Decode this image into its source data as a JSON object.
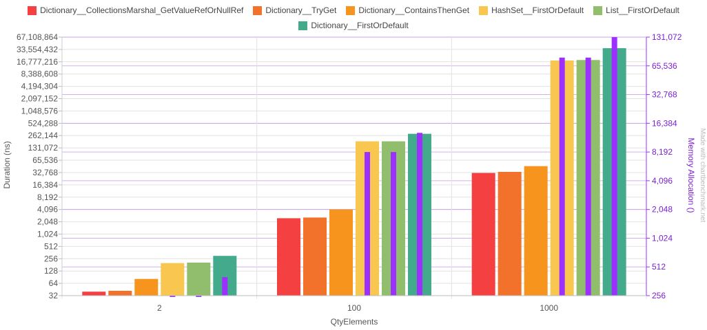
{
  "chart_data": {
    "type": "bar",
    "categories": [
      "2",
      "100",
      "1000"
    ],
    "xlabel": "QtyElements",
    "ylabel": "Duration (ns)",
    "ylabel_right": "Memory Allocation ()",
    "watermark": "Made with chartbenchmark.net",
    "y_scale": "log2",
    "ylim": [
      32,
      67108864
    ],
    "y_ticks": [
      "32",
      "64",
      "128",
      "256",
      "512",
      "1,024",
      "2,048",
      "4,096",
      "8,192",
      "16,384",
      "32,768",
      "65,536",
      "131,072",
      "262,144",
      "524,288",
      "1,048,576",
      "2,097,152",
      "4,194,304",
      "8,388,608",
      "16,777,216",
      "33,554,432",
      "67,108,864"
    ],
    "y2_scale": "log2",
    "y2lim": [
      256,
      131072
    ],
    "y2_ticks": [
      "256",
      "512",
      "1,024",
      "2,048",
      "4,096",
      "8,192",
      "16,384",
      "32,768",
      "65,536",
      "131,072"
    ],
    "grid": true,
    "legend_position": "top",
    "series": [
      {
        "name": "Dictionary__CollectionsMarshal_GetValueRefOrNullRef",
        "color": "#f44040",
        "values": [
          40,
          2500,
          32000
        ],
        "memory": [
          null,
          null,
          null
        ]
      },
      {
        "name": "Dictionary__TryGet",
        "color": "#f2722b",
        "values": [
          42,
          2600,
          34000
        ],
        "memory": [
          null,
          null,
          null
        ]
      },
      {
        "name": "Dictionary__ContainsThenGet",
        "color": "#f7941d",
        "values": [
          82,
          4100,
          47000
        ],
        "memory": [
          null,
          null,
          null
        ]
      },
      {
        "name": "HashSet__FirstOrDefault",
        "color": "#f9c74f",
        "values": [
          200,
          190000,
          18000000
        ],
        "memory": [
          256,
          8192,
          80000
        ]
      },
      {
        "name": "List__FirstOrDefault",
        "color": "#90be6d",
        "values": [
          205,
          190000,
          18500000
        ],
        "memory": [
          256,
          8192,
          80000
        ]
      },
      {
        "name": "Dictionary__FirstOrDefault",
        "color": "#43aa8b",
        "values": [
          300,
          290000,
          36000000
        ],
        "memory": [
          400,
          13000,
          131072
        ]
      }
    ],
    "memory_color": "#9b30ff"
  }
}
